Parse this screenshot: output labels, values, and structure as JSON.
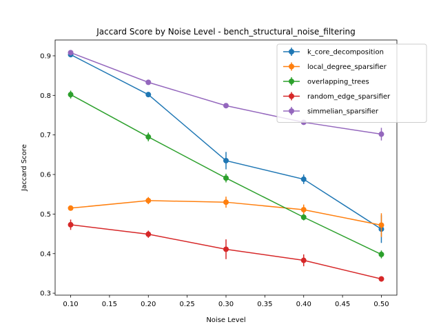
{
  "chart_data": {
    "type": "line",
    "title": "Jaccard Score by Noise Level - bench_structural_noise_filtering",
    "xlabel": "Noise Level",
    "ylabel": "Jaccard Score",
    "xlim": [
      0.08,
      0.52
    ],
    "ylim": [
      0.295,
      0.94
    ],
    "xticks": [
      0.1,
      0.15,
      0.2,
      0.25,
      0.3,
      0.35,
      0.4,
      0.45,
      0.5
    ],
    "xtick_labels": [
      "0.10",
      "0.15",
      "0.20",
      "0.25",
      "0.30",
      "0.35",
      "0.40",
      "0.45",
      "0.50"
    ],
    "yticks": [
      0.3,
      0.4,
      0.5,
      0.6,
      0.7,
      0.8,
      0.9
    ],
    "ytick_labels": [
      "0.3",
      "0.4",
      "0.5",
      "0.6",
      "0.7",
      "0.8",
      "0.9"
    ],
    "grid": false,
    "legend_position": "top-right",
    "x": [
      0.1,
      0.2,
      0.3,
      0.4,
      0.5
    ],
    "series": [
      {
        "name": "k_core_decomposition",
        "color": "#1f77b4",
        "values": [
          0.903,
          0.802,
          0.635,
          0.588,
          0.462
        ],
        "errors": [
          0.005,
          0.004,
          0.022,
          0.012,
          0.035
        ]
      },
      {
        "name": "local_degree_sparsifier",
        "color": "#ff7f0e",
        "values": [
          0.515,
          0.534,
          0.53,
          0.511,
          0.472
        ],
        "errors": [
          0.005,
          0.009,
          0.014,
          0.013,
          0.03
        ]
      },
      {
        "name": "overlapping_trees",
        "color": "#2ca02c",
        "values": [
          0.802,
          0.695,
          0.591,
          0.492,
          0.398
        ],
        "errors": [
          0.01,
          0.011,
          0.011,
          0.008,
          0.01
        ]
      },
      {
        "name": "random_edge_sparsifier",
        "color": "#d62728",
        "values": [
          0.473,
          0.449,
          0.411,
          0.383,
          0.336
        ],
        "errors": [
          0.013,
          0.009,
          0.025,
          0.015,
          0.007
        ]
      },
      {
        "name": "simmelian_sparsifier",
        "color": "#9467bd",
        "values": [
          0.908,
          0.833,
          0.774,
          0.732,
          0.702
        ],
        "errors": [
          0.004,
          0.003,
          0.003,
          0.004,
          0.016
        ]
      }
    ]
  }
}
